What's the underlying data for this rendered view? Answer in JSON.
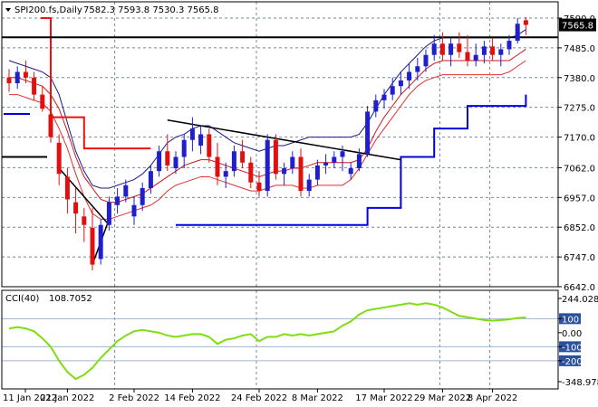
{
  "header": {
    "symbol": "SPI200.fs,Daily",
    "ohlc": "7582.3 7593.8 7530.3 7565.8"
  },
  "colors": {
    "bull": "#1f1fcc",
    "bear": "#e01010",
    "grid": "#778899",
    "upper_band": "#1a1a8a",
    "mid_band": "#cc1818",
    "lower_band": "#e03030",
    "stop_red": "#ee1111",
    "stop_blue": "#0000e0",
    "trend": "#000000",
    "cci": "#7fdd11"
  },
  "chart_data": [
    {
      "type": "candlestick",
      "title": "SPI200.fs,Daily",
      "header_values": {
        "open": 7582.3,
        "high": 7593.8,
        "low": 7530.3,
        "close": 7565.8
      },
      "price_ticks": [
        "7590.0",
        "7485.0",
        "7380.0",
        "7275.0",
        "7170.0",
        "7062.0",
        "6957.0",
        "6852.0",
        "6747.0",
        "6642.0"
      ],
      "ylim": [
        6642,
        7590
      ],
      "current_price": "7565.8",
      "x_labels": [
        "11 Jan 2022",
        "21 Jan 2022",
        "2 Feb 2022",
        "14 Feb 2022",
        "24 Feb 2022",
        "8 Mar 2022",
        "17 Mar 2022",
        "29 Mar 2022",
        "8 Apr 2022"
      ],
      "candles": [
        [
          7380,
          7410,
          7330,
          7360
        ],
        [
          7360,
          7420,
          7340,
          7400
        ],
        [
          7400,
          7440,
          7360,
          7380
        ],
        [
          7380,
          7400,
          7300,
          7320
        ],
        [
          7320,
          7350,
          7260,
          7270
        ],
        [
          7250,
          7280,
          7150,
          7170
        ],
        [
          7150,
          7180,
          7000,
          7040
        ],
        [
          7030,
          7060,
          6900,
          6950
        ],
        [
          6940,
          6990,
          6830,
          6900
        ],
        [
          6890,
          6920,
          6800,
          6860
        ],
        [
          6850,
          6920,
          6700,
          6720
        ],
        [
          6740,
          6880,
          6720,
          6860
        ],
        [
          6860,
          6960,
          6840,
          6940
        ],
        [
          6930,
          6990,
          6900,
          6960
        ],
        [
          6960,
          7020,
          6940,
          7000
        ],
        [
          6890,
          6960,
          6860,
          6930
        ],
        [
          6930,
          7010,
          6910,
          6990
        ],
        [
          6990,
          7070,
          6970,
          7050
        ],
        [
          7050,
          7140,
          7030,
          7120
        ],
        [
          7120,
          7180,
          7050,
          7070
        ],
        [
          7060,
          7120,
          7040,
          7100
        ],
        [
          7100,
          7180,
          7060,
          7160
        ],
        [
          7160,
          7240,
          7120,
          7200
        ],
        [
          7140,
          7210,
          7110,
          7180
        ],
        [
          7180,
          7200,
          7080,
          7100
        ],
        [
          7100,
          7150,
          7000,
          7030
        ],
        [
          7030,
          7080,
          6990,
          7050
        ],
        [
          7050,
          7140,
          7030,
          7120
        ],
        [
          7120,
          7160,
          7060,
          7080
        ],
        [
          7080,
          7100,
          6990,
          7010
        ],
        [
          7010,
          7050,
          6960,
          6980
        ],
        [
          6980,
          7180,
          6960,
          7160
        ],
        [
          7160,
          7180,
          7020,
          7040
        ],
        [
          7040,
          7080,
          7000,
          7060
        ],
        [
          7060,
          7120,
          7040,
          7100
        ],
        [
          7100,
          7130,
          6960,
          6980
        ],
        [
          6980,
          7040,
          6960,
          7020
        ],
        [
          7020,
          7090,
          7000,
          7070
        ],
        [
          7070,
          7110,
          7040,
          7080
        ],
        [
          7080,
          7120,
          7060,
          7100
        ],
        [
          7100,
          7140,
          7050,
          7120
        ],
        [
          7040,
          7080,
          7020,
          7060
        ],
        [
          7060,
          7130,
          7050,
          7110
        ],
        [
          7110,
          7280,
          7100,
          7260
        ],
        [
          7260,
          7320,
          7240,
          7300
        ],
        [
          7300,
          7340,
          7270,
          7320
        ],
        [
          7320,
          7380,
          7300,
          7350
        ],
        [
          7350,
          7400,
          7320,
          7370
        ],
        [
          7370,
          7430,
          7340,
          7400
        ],
        [
          7400,
          7450,
          7370,
          7420
        ],
        [
          7420,
          7480,
          7400,
          7460
        ],
        [
          7460,
          7530,
          7440,
          7500
        ],
        [
          7500,
          7540,
          7440,
          7460
        ],
        [
          7460,
          7520,
          7420,
          7500
        ],
        [
          7500,
          7540,
          7450,
          7470
        ],
        [
          7470,
          7530,
          7420,
          7440
        ],
        [
          7440,
          7500,
          7420,
          7460
        ],
        [
          7460,
          7510,
          7430,
          7490
        ],
        [
          7490,
          7520,
          7440,
          7460
        ],
        [
          7460,
          7500,
          7420,
          7480
        ],
        [
          7480,
          7530,
          7460,
          7510
        ],
        [
          7510,
          7590,
          7500,
          7570
        ],
        [
          7582.3,
          7593.8,
          7530.3,
          7565.8
        ]
      ],
      "upper_band": [
        7440,
        7430,
        7420,
        7410,
        7400,
        7380,
        7320,
        7220,
        7120,
        7050,
        7000,
        6990,
        6990,
        7000,
        7010,
        7020,
        7040,
        7070,
        7110,
        7150,
        7170,
        7180,
        7200,
        7210,
        7210,
        7190,
        7170,
        7150,
        7140,
        7130,
        7120,
        7130,
        7140,
        7140,
        7150,
        7160,
        7170,
        7170,
        7170,
        7170,
        7170,
        7170,
        7180,
        7220,
        7270,
        7320,
        7360,
        7400,
        7430,
        7460,
        7490,
        7510,
        7520,
        7520,
        7520,
        7520,
        7520,
        7520,
        7520,
        7520,
        7520,
        7530,
        7550
      ],
      "middle_band": [
        7380,
        7380,
        7370,
        7360,
        7350,
        7320,
        7270,
        7190,
        7100,
        7030,
        6990,
        6950,
        6940,
        6940,
        6950,
        6960,
        6970,
        6990,
        7010,
        7030,
        7050,
        7070,
        7080,
        7090,
        7090,
        7080,
        7070,
        7060,
        7050,
        7040,
        7030,
        7040,
        7050,
        7050,
        7060,
        7060,
        7070,
        7080,
        7080,
        7080,
        7080,
        7080,
        7090,
        7130,
        7190,
        7240,
        7280,
        7320,
        7350,
        7380,
        7410,
        7430,
        7440,
        7440,
        7440,
        7440,
        7440,
        7440,
        7440,
        7440,
        7440,
        7460,
        7480
      ],
      "lower_band": [
        7320,
        7320,
        7310,
        7300,
        7290,
        7260,
        7200,
        7130,
        7040,
        6960,
        6900,
        6880,
        6880,
        6890,
        6900,
        6910,
        6920,
        6930,
        6950,
        6980,
        7000,
        7010,
        7020,
        7030,
        7030,
        7020,
        7010,
        7000,
        6990,
        6980,
        6980,
        6990,
        7000,
        7000,
        7000,
        6990,
        6990,
        7000,
        7000,
        7000,
        7000,
        7020,
        7060,
        7110,
        7160,
        7200,
        7240,
        7280,
        7320,
        7350,
        7370,
        7380,
        7390,
        7390,
        7390,
        7390,
        7390,
        7390,
        7390,
        7390,
        7400,
        7420,
        7440
      ],
      "red_trail": [
        [
          0,
          7590
        ],
        [
          5,
          7240
        ],
        [
          9,
          7130
        ],
        [
          17,
          7130
        ]
      ],
      "blue_trail": [
        [
          20,
          6860
        ],
        [
          28,
          6860
        ],
        [
          38,
          6860
        ],
        [
          43,
          6920
        ],
        [
          47,
          7100
        ],
        [
          51,
          7200
        ],
        [
          55,
          7280
        ],
        [
          60,
          7280
        ],
        [
          62,
          7320
        ]
      ],
      "horizontal_lines": [
        7522,
        7100
      ],
      "trendlines": [
        [
          [
            19,
            7230
          ],
          [
            47,
            7090
          ]
        ],
        [
          [
            6,
            7060
          ],
          [
            12,
            6860
          ]
        ],
        [
          [
            10,
            6720
          ],
          [
            12,
            6880
          ]
        ]
      ],
      "cci": {
        "label": "CCI(40)",
        "value": "108.7052",
        "ticks": [
          "244.0283",
          "100",
          "0.00",
          "-100",
          "-200",
          "-348.978"
        ],
        "levels": [
          100,
          -100,
          -200
        ],
        "ylim": [
          -348.978,
          244.0283
        ],
        "values": [
          30,
          40,
          30,
          10,
          -40,
          -100,
          -200,
          -280,
          -330,
          -300,
          -250,
          -180,
          -120,
          -60,
          -20,
          10,
          20,
          10,
          0,
          -20,
          -30,
          -20,
          -10,
          -10,
          -30,
          -80,
          -50,
          -40,
          -20,
          -10,
          -60,
          -30,
          -30,
          -10,
          -20,
          -10,
          -20,
          -10,
          0,
          10,
          50,
          80,
          130,
          160,
          170,
          180,
          190,
          200,
          210,
          200,
          210,
          200,
          180,
          150,
          120,
          110,
          100,
          90,
          85,
          90,
          95,
          105,
          108.7
        ]
      }
    }
  ]
}
